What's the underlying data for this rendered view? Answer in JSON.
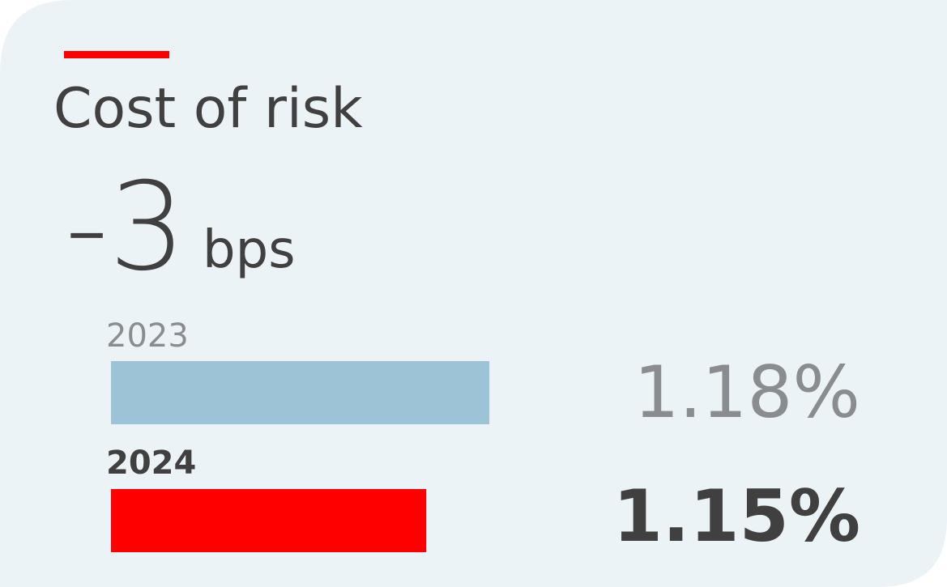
{
  "chart_data": {
    "type": "bar",
    "orientation": "horizontal",
    "title": "Cost of risk",
    "headline_value": -3,
    "headline_unit": "bps",
    "categories": [
      "2023",
      "2024"
    ],
    "values": [
      1.18,
      1.15
    ],
    "value_labels": [
      "1.18%",
      "1.15%"
    ],
    "colors": [
      "#9dc3d6",
      "#ff0000"
    ],
    "xlim": [
      1,
      1.2
    ]
  }
}
